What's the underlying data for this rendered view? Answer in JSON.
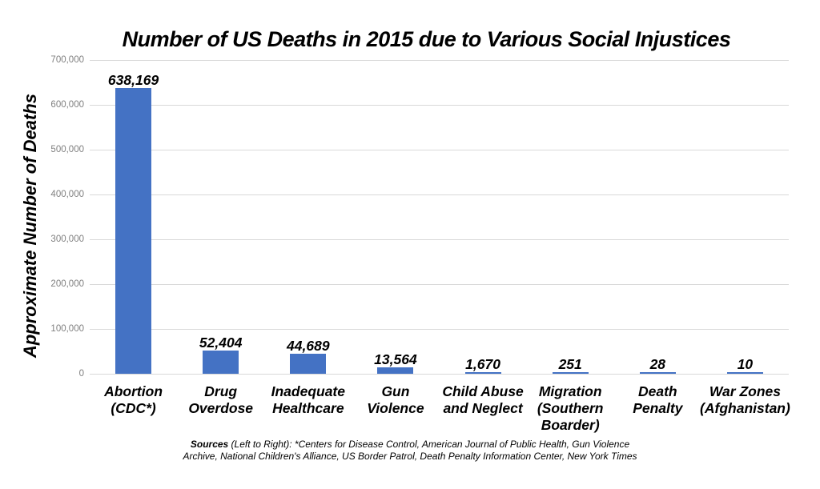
{
  "chart_data": {
    "type": "bar",
    "title": "Number of US Deaths in 2015 due to Various Social Injustices",
    "ylabel": "Approximate Number of Deaths",
    "xlabel": "",
    "categories": [
      "Abortion\n(CDC*)",
      "Drug\nOverdose",
      "Inadequate\nHealthcare",
      "Gun\nViolence",
      "Child Abuse\nand Neglect",
      "Migration\n(Southern\nBoarder)",
      "Death\nPenalty",
      "War Zones\n(Afghanistan)"
    ],
    "values": [
      638169,
      52404,
      44689,
      13564,
      1670,
      251,
      28,
      10
    ],
    "value_labels": [
      "638,169",
      "52,404",
      "44,689",
      "13,564",
      "1,670",
      "251",
      "28",
      "10"
    ],
    "ylim": [
      0,
      700000
    ],
    "ytick_step": 100000,
    "yticks": [
      "0",
      "100,000",
      "200,000",
      "300,000",
      "400,000",
      "500,000",
      "600,000",
      "700,000"
    ],
    "grid": true,
    "legend": false,
    "colors": {
      "bar": "#4472C4",
      "gridline": "#D9D9D9",
      "tick_label": "#808080",
      "text": "#000000"
    }
  },
  "sources": {
    "bold_label": "Sources",
    "line1_rest": " (Left to Right): *Centers for Disease Control, American Journal of Public Health, Gun Violence",
    "line2": "Archive, National Children's Alliance, US Border Patrol, Death Penalty Information Center, New York Times"
  }
}
